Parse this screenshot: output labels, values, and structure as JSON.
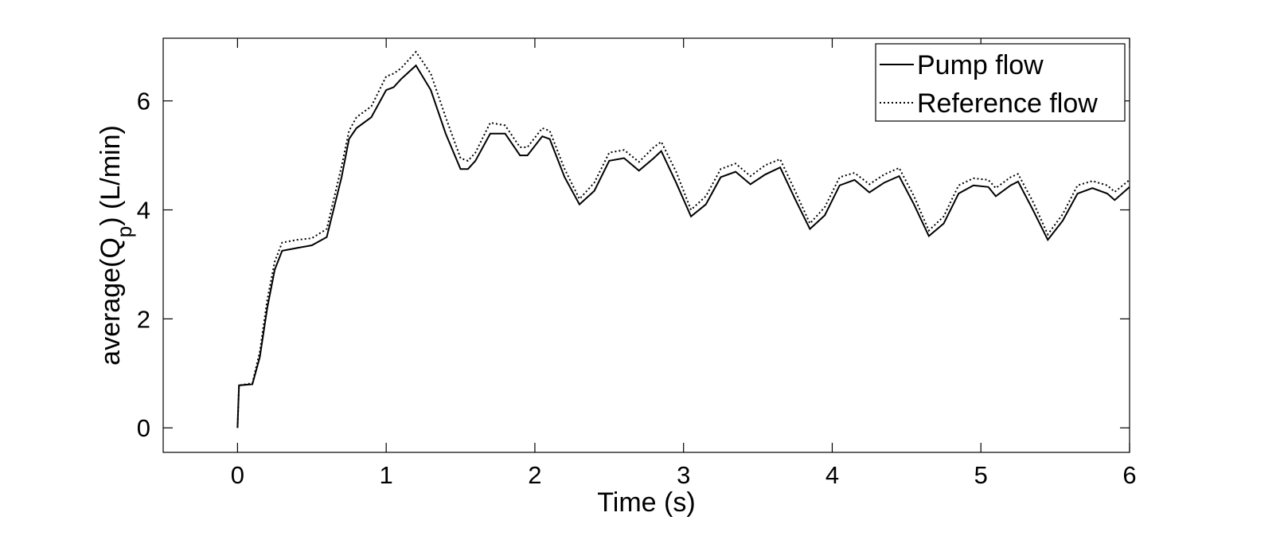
{
  "chart_data": {
    "type": "line",
    "xlabel": "Time (s)",
    "ylabel_parts": [
      "average(Q",
      "p",
      ") (L/min)"
    ],
    "xlim": [
      -0.5,
      6
    ],
    "ylim": [
      -0.45,
      7.15
    ],
    "xticks": [
      0,
      1,
      2,
      3,
      4,
      5,
      6
    ],
    "yticks": [
      0,
      2,
      4,
      6
    ],
    "grid": false,
    "legend": "northeast",
    "x": [
      0,
      0.01,
      0.1,
      0.15,
      0.2,
      0.25,
      0.3,
      0.4,
      0.5,
      0.6,
      0.7,
      0.75,
      0.8,
      0.9,
      1.0,
      1.05,
      1.1,
      1.2,
      1.3,
      1.4,
      1.5,
      1.55,
      1.6,
      1.7,
      1.8,
      1.9,
      1.95,
      2.05,
      2.1,
      2.2,
      2.3,
      2.4,
      2.5,
      2.6,
      2.7,
      2.8,
      2.85,
      2.95,
      3.05,
      3.15,
      3.25,
      3.35,
      3.45,
      3.55,
      3.65,
      3.75,
      3.85,
      3.95,
      4.05,
      4.15,
      4.25,
      4.35,
      4.45,
      4.55,
      4.65,
      4.75,
      4.85,
      4.95,
      5.05,
      5.1,
      5.2,
      5.25,
      5.35,
      5.45,
      5.55,
      5.65,
      5.75,
      5.85,
      5.9,
      6.0
    ],
    "series": [
      {
        "name": "Pump flow",
        "color": "#000000",
        "style": "solid",
        "values": [
          0,
          0.78,
          0.8,
          1.3,
          2.2,
          2.9,
          3.25,
          3.3,
          3.35,
          3.5,
          4.6,
          5.3,
          5.5,
          5.7,
          6.2,
          6.25,
          6.4,
          6.65,
          6.2,
          5.4,
          4.75,
          4.75,
          4.9,
          5.4,
          5.4,
          5.0,
          5.0,
          5.35,
          5.3,
          4.6,
          4.1,
          4.35,
          4.9,
          4.95,
          4.72,
          4.95,
          5.08,
          4.5,
          3.88,
          4.1,
          4.6,
          4.7,
          4.47,
          4.65,
          4.78,
          4.2,
          3.65,
          3.9,
          4.45,
          4.55,
          4.32,
          4.5,
          4.62,
          4.1,
          3.52,
          3.75,
          4.3,
          4.45,
          4.42,
          4.25,
          4.45,
          4.52,
          4.0,
          3.45,
          3.8,
          4.3,
          4.4,
          4.3,
          4.18,
          4.42
        ]
      },
      {
        "name": "Reference flow",
        "color": "#000000",
        "style": "dotted",
        "values": [
          0,
          0.78,
          0.82,
          1.4,
          2.35,
          3.05,
          3.4,
          3.45,
          3.48,
          3.65,
          4.8,
          5.45,
          5.7,
          5.9,
          6.45,
          6.5,
          6.6,
          6.9,
          6.5,
          5.7,
          4.95,
          4.9,
          5.05,
          5.6,
          5.55,
          5.15,
          5.15,
          5.5,
          5.45,
          4.75,
          4.2,
          4.5,
          5.05,
          5.1,
          4.88,
          5.15,
          5.25,
          4.7,
          4.0,
          4.25,
          4.75,
          4.85,
          4.62,
          4.82,
          4.93,
          4.35,
          3.75,
          4.05,
          4.6,
          4.68,
          4.47,
          4.65,
          4.77,
          4.25,
          3.62,
          3.88,
          4.45,
          4.58,
          4.55,
          4.4,
          4.6,
          4.66,
          4.15,
          3.55,
          3.92,
          4.45,
          4.53,
          4.45,
          4.33,
          4.55
        ]
      }
    ]
  }
}
